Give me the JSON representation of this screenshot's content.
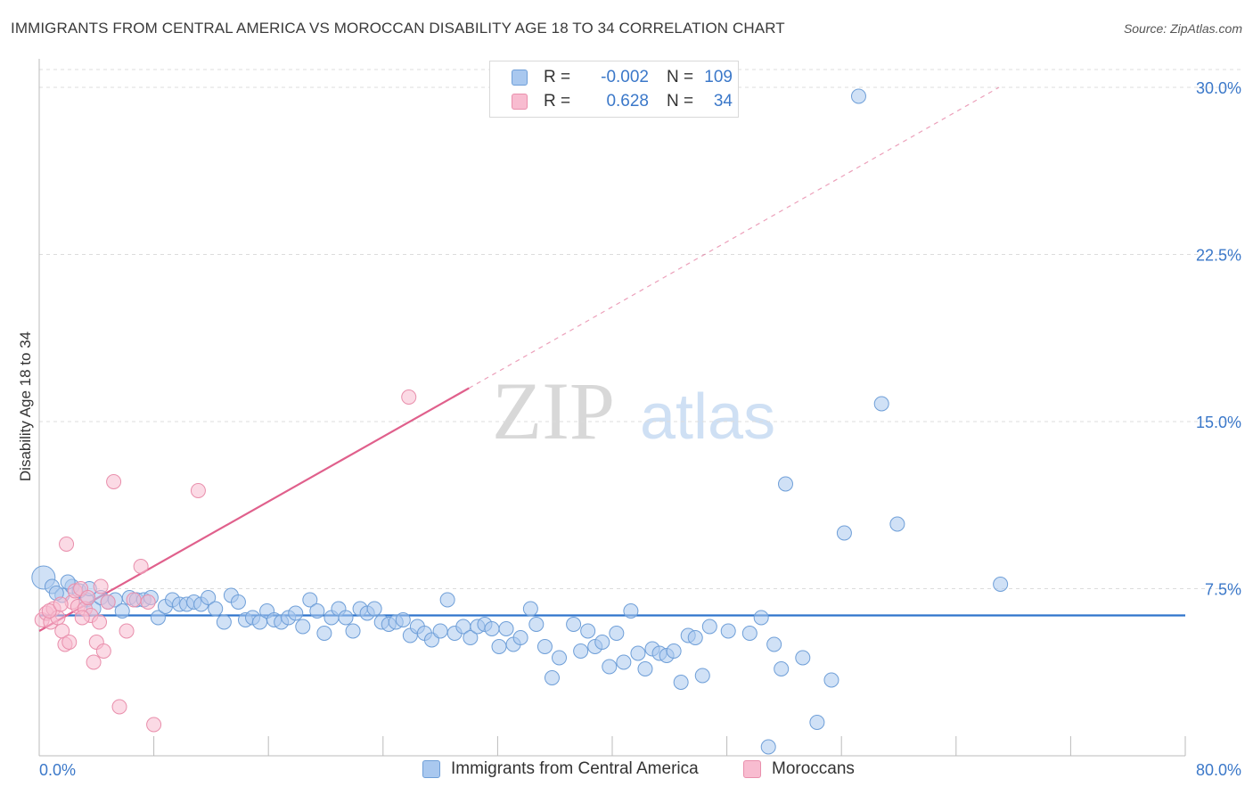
{
  "title": "IMMIGRANTS FROM CENTRAL AMERICA VS MOROCCAN DISABILITY AGE 18 TO 34 CORRELATION CHART",
  "source": "Source: ZipAtlas.com",
  "watermark": {
    "zip": "ZIP",
    "atlas": "atlas"
  },
  "legend": {
    "rows": [
      {
        "r_label": "R =",
        "r_value": "-0.002",
        "n_label": "N =",
        "n_value": "109",
        "color": "#a9c8ef",
        "border": "#6f9fd8"
      },
      {
        "r_label": "R =",
        "r_value": "0.628",
        "n_label": "N =",
        "n_value": "34",
        "color": "#f8bcd0",
        "border": "#e98fac"
      }
    ]
  },
  "bottom_legend": [
    {
      "label": "Immigrants from Central America",
      "color": "#a9c8ef",
      "border": "#6f9fd8"
    },
    {
      "label": "Moroccans",
      "color": "#f8bcd0",
      "border": "#e98fac"
    }
  ],
  "chart_data": {
    "type": "scatter",
    "ylabel": "Disability Age 18 to 34",
    "xlim": [
      0,
      80
    ],
    "ylim": [
      0,
      30.8
    ],
    "x_tick_labels": [
      {
        "value": 0,
        "label": "0.0%"
      },
      {
        "value": 80,
        "label": "80.0%"
      }
    ],
    "y_tick_labels": [
      {
        "value": 7.5,
        "label": "7.5%"
      },
      {
        "value": 15.0,
        "label": "15.0%"
      },
      {
        "value": 22.5,
        "label": "22.5%"
      },
      {
        "value": 30.0,
        "label": "30.0%"
      }
    ],
    "x_minor_ticks": [
      8,
      16,
      24,
      32,
      40,
      48,
      56,
      64,
      72,
      80
    ],
    "grid": true,
    "legend_position": "top-center",
    "series": [
      {
        "name": "Immigrants from Central America",
        "color": "#a9c8ef",
        "stroke": "#6f9fd8",
        "trend": {
          "x": [
            0,
            80
          ],
          "y": [
            6.3,
            6.3
          ],
          "color": "#2f74cc",
          "dashed_extension": false
        },
        "points": [
          [
            0.3,
            8.0
          ],
          [
            0.9,
            7.6
          ],
          [
            1.6,
            7.2
          ],
          [
            2.3,
            7.6
          ],
          [
            2.8,
            7.4
          ],
          [
            3.3,
            7.0
          ],
          [
            3.8,
            6.6
          ],
          [
            4.3,
            7.1
          ],
          [
            4.8,
            6.9
          ],
          [
            5.3,
            7.0
          ],
          [
            5.8,
            6.5
          ],
          [
            6.3,
            7.1
          ],
          [
            6.8,
            7.0
          ],
          [
            7.3,
            7.0
          ],
          [
            7.8,
            7.1
          ],
          [
            8.3,
            6.2
          ],
          [
            8.8,
            6.7
          ],
          [
            9.3,
            7.0
          ],
          [
            9.8,
            6.8
          ],
          [
            10.3,
            6.8
          ],
          [
            10.8,
            6.9
          ],
          [
            11.3,
            6.8
          ],
          [
            11.8,
            7.1
          ],
          [
            12.3,
            6.6
          ],
          [
            12.9,
            6.0
          ],
          [
            13.4,
            7.2
          ],
          [
            13.9,
            6.9
          ],
          [
            14.4,
            6.1
          ],
          [
            14.9,
            6.2
          ],
          [
            15.4,
            6.0
          ],
          [
            15.9,
            6.5
          ],
          [
            16.4,
            6.1
          ],
          [
            16.9,
            6.0
          ],
          [
            17.4,
            6.2
          ],
          [
            17.9,
            6.4
          ],
          [
            18.4,
            5.8
          ],
          [
            18.9,
            7.0
          ],
          [
            19.4,
            6.5
          ],
          [
            19.9,
            5.5
          ],
          [
            20.4,
            6.2
          ],
          [
            20.9,
            6.6
          ],
          [
            21.4,
            6.2
          ],
          [
            21.9,
            5.6
          ],
          [
            22.4,
            6.6
          ],
          [
            22.9,
            6.4
          ],
          [
            23.4,
            6.6
          ],
          [
            23.9,
            6.0
          ],
          [
            24.4,
            5.9
          ],
          [
            24.9,
            6.0
          ],
          [
            25.4,
            6.1
          ],
          [
            25.9,
            5.4
          ],
          [
            26.4,
            5.8
          ],
          [
            26.9,
            5.5
          ],
          [
            27.4,
            5.2
          ],
          [
            28.0,
            5.6
          ],
          [
            28.5,
            7.0
          ],
          [
            29.0,
            5.5
          ],
          [
            29.6,
            5.8
          ],
          [
            30.1,
            5.3
          ],
          [
            30.6,
            5.8
          ],
          [
            31.1,
            5.9
          ],
          [
            31.6,
            5.7
          ],
          [
            32.1,
            4.9
          ],
          [
            32.6,
            5.7
          ],
          [
            33.1,
            5.0
          ],
          [
            33.6,
            5.3
          ],
          [
            34.3,
            6.6
          ],
          [
            34.7,
            5.9
          ],
          [
            35.3,
            4.9
          ],
          [
            35.8,
            3.5
          ],
          [
            36.3,
            4.4
          ],
          [
            37.3,
            5.9
          ],
          [
            37.8,
            4.7
          ],
          [
            38.3,
            5.6
          ],
          [
            38.8,
            4.9
          ],
          [
            39.3,
            5.1
          ],
          [
            39.8,
            4.0
          ],
          [
            40.3,
            5.5
          ],
          [
            40.8,
            4.2
          ],
          [
            41.3,
            6.5
          ],
          [
            41.8,
            4.6
          ],
          [
            42.3,
            3.9
          ],
          [
            42.8,
            4.8
          ],
          [
            43.3,
            4.6
          ],
          [
            43.8,
            4.5
          ],
          [
            44.3,
            4.7
          ],
          [
            44.8,
            3.3
          ],
          [
            45.3,
            5.4
          ],
          [
            45.8,
            5.3
          ],
          [
            46.3,
            3.6
          ],
          [
            46.8,
            5.8
          ],
          [
            48.1,
            5.6
          ],
          [
            49.6,
            5.5
          ],
          [
            50.4,
            6.2
          ],
          [
            51.3,
            5.0
          ],
          [
            51.8,
            3.9
          ],
          [
            53.3,
            4.4
          ],
          [
            54.3,
            1.5
          ],
          [
            55.3,
            3.4
          ],
          [
            50.9,
            0.4
          ],
          [
            52.1,
            12.2
          ],
          [
            56.2,
            10.0
          ],
          [
            59.9,
            10.4
          ],
          [
            67.1,
            7.7
          ],
          [
            58.8,
            15.8
          ],
          [
            57.2,
            29.6
          ],
          [
            2.0,
            7.8
          ],
          [
            3.5,
            7.5
          ],
          [
            1.2,
            7.3
          ]
        ]
      },
      {
        "name": "Moroccans",
        "color": "#f8bcd0",
        "stroke": "#e98fac",
        "trend": {
          "x": [
            0,
            30
          ],
          "y": [
            5.6,
            16.5
          ],
          "color": "#e0608c",
          "dashed_extension": true,
          "extension_to": [
            67,
            30.0
          ]
        },
        "points": [
          [
            0.2,
            6.1
          ],
          [
            0.5,
            6.4
          ],
          [
            0.8,
            6.0
          ],
          [
            1.0,
            6.6
          ],
          [
            1.3,
            6.2
          ],
          [
            1.6,
            5.6
          ],
          [
            1.8,
            5.0
          ],
          [
            2.1,
            5.1
          ],
          [
            2.3,
            6.9
          ],
          [
            2.5,
            7.4
          ],
          [
            2.7,
            6.7
          ],
          [
            2.9,
            7.5
          ],
          [
            3.2,
            6.6
          ],
          [
            3.4,
            7.1
          ],
          [
            3.6,
            6.3
          ],
          [
            3.8,
            4.2
          ],
          [
            4.0,
            5.1
          ],
          [
            4.2,
            6.0
          ],
          [
            4.3,
            7.6
          ],
          [
            4.5,
            4.7
          ],
          [
            4.8,
            6.9
          ],
          [
            5.2,
            12.3
          ],
          [
            5.6,
            2.2
          ],
          [
            6.1,
            5.6
          ],
          [
            6.6,
            7.0
          ],
          [
            7.1,
            8.5
          ],
          [
            7.6,
            6.9
          ],
          [
            8.0,
            1.4
          ],
          [
            1.9,
            9.5
          ],
          [
            11.1,
            11.9
          ],
          [
            25.8,
            16.1
          ],
          [
            0.7,
            6.5
          ],
          [
            1.5,
            6.8
          ],
          [
            3.0,
            6.2
          ]
        ]
      }
    ]
  }
}
